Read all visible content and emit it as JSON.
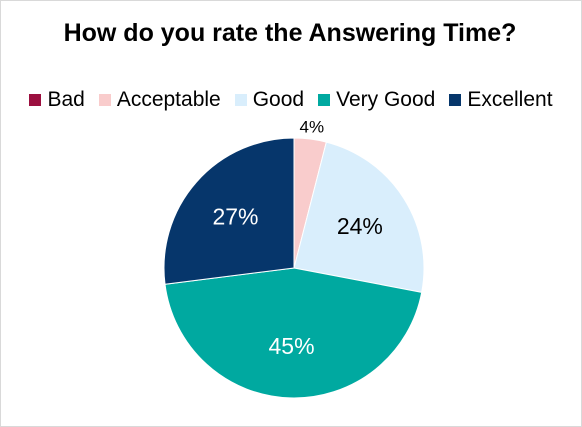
{
  "chart_data": {
    "type": "pie",
    "title": "How do you rate the Answering Time?",
    "categories": [
      "Bad",
      "Acceptable",
      "Good",
      "Very Good",
      "Excellent"
    ],
    "values": [
      0,
      4,
      24,
      45,
      27
    ],
    "data_labels": [
      "",
      "4%",
      "24%",
      "45%",
      "27%"
    ],
    "colors": [
      "#9b0f3f",
      "#f9cccc",
      "#d9eefc",
      "#00a9a0",
      "#06366b"
    ],
    "label_colors": [
      "#000000",
      "#000000",
      "#000000",
      "#ffffff",
      "#ffffff"
    ],
    "legend_position": "top"
  }
}
